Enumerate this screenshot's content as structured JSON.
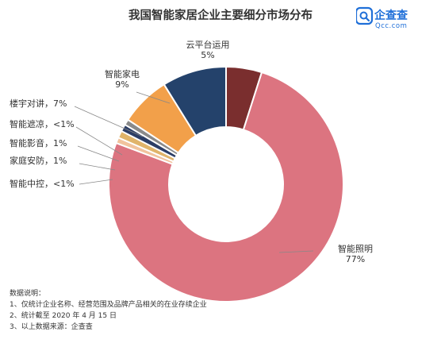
{
  "header": {
    "title": "我国智能家居企业主要细分市场分布",
    "logo_text": "企查查",
    "logo_sub": "Qcc.com"
  },
  "chart_data": {
    "type": "pie",
    "title": "我国智能家居企业主要细分市场分布",
    "unit": "%",
    "slices": [
      {
        "name": "云平台运用",
        "label": "5%",
        "value": 5,
        "color": "#7a2e2e"
      },
      {
        "name": "智能照明",
        "label": "77%",
        "value": 77,
        "color": "#dc7480"
      },
      {
        "name": "智能中控",
        "label": "<1%",
        "value": 0.8,
        "color": "#f1c39d"
      },
      {
        "name": "家庭安防",
        "label": "1%",
        "value": 1,
        "color": "#e0b46a"
      },
      {
        "name": "智能影音",
        "label": "1%",
        "value": 1,
        "color": "#2c3e66"
      },
      {
        "name": "智能遮凉",
        "label": "<1%",
        "value": 0.8,
        "color": "#8a8a8a"
      },
      {
        "name": "楼宇对讲",
        "label": "7%",
        "value": 7,
        "color": "#f2a04a"
      },
      {
        "name": "智能家电",
        "label": "9%",
        "value": 9,
        "color": "#24426b"
      }
    ],
    "legend": "none"
  },
  "notes": {
    "heading": "数据说明：",
    "items": [
      "1、仅统计企业名称、经营范围及品牌产品相关的在业存续企业",
      "2、统计截至 2020 年 4 月 15 日",
      "3、以上数据来源：企查查"
    ]
  }
}
